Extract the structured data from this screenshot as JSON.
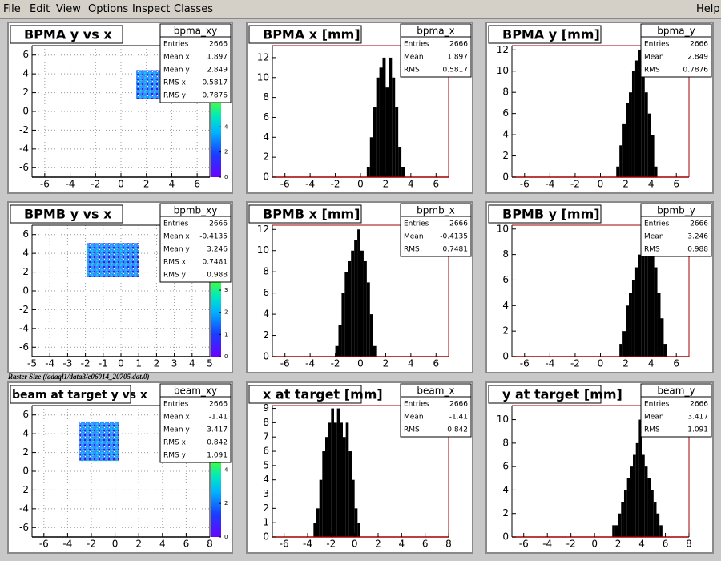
{
  "menu": [
    "File",
    "Edit",
    "View",
    "Options",
    "Inspect",
    "Classes"
  ],
  "help": "Help",
  "caption": "Raster Size (/adaql1/data3/e06014_20705.dat.0)",
  "chart_data": [
    {
      "type": "heatmap",
      "title": "BPMA y vs x",
      "stats": {
        "name": "bpma_xy",
        "rows": [
          {
            "label": "Entries",
            "value": 2666
          },
          {
            "label": "Mean x",
            "value": 1.897
          },
          {
            "label": "Mean y",
            "value": 2.849
          },
          {
            "label": "RMS x",
            "value": 0.5817
          },
          {
            "label": "RMS y",
            "value": 0.7876
          }
        ]
      },
      "cluster": {
        "x": [
          1.2,
          3.6
        ],
        "y": [
          1.3,
          4.4
        ]
      },
      "xlim": [
        -7,
        7
      ],
      "xticks": [
        -6,
        -4,
        -2,
        0,
        2,
        4,
        6
      ],
      "ylim": [
        -7,
        7
      ],
      "yticks": [
        -6,
        -4,
        -2,
        0,
        2,
        4,
        6
      ],
      "zlim": [
        0,
        6
      ],
      "zticks": [
        0,
        2,
        4
      ],
      "grid": true
    },
    {
      "type": "histogram",
      "title": "BPMA x [mm]",
      "stats": {
        "name": "bpma_x",
        "rows": [
          {
            "label": "Entries",
            "value": 2666
          },
          {
            "label": "Mean",
            "value": 1.897
          },
          {
            "label": "RMS",
            "value": 0.5817
          }
        ]
      },
      "bins": [
        0.5,
        0.75,
        1,
        1.25,
        1.5,
        1.75,
        2,
        2.25,
        2.5,
        2.75,
        3,
        3.25,
        3.5
      ],
      "values": [
        1,
        4,
        7,
        10,
        11,
        12,
        9,
        12,
        10,
        7,
        3,
        1
      ],
      "xlim": [
        -7,
        7
      ],
      "xticks": [
        -6,
        -4,
        -2,
        0,
        2,
        4,
        6
      ],
      "ylim": [
        0,
        13.2
      ],
      "yticks": [
        0,
        2,
        4,
        6,
        8,
        10,
        12
      ],
      "grid": false
    },
    {
      "type": "histogram",
      "title": "BPMA y [mm]",
      "stats": {
        "name": "bpma_y",
        "rows": [
          {
            "label": "Entries",
            "value": 2666
          },
          {
            "label": "Mean",
            "value": 2.849
          },
          {
            "label": "RMS",
            "value": 0.7876
          }
        ]
      },
      "bins": [
        1.25,
        1.5,
        1.75,
        2,
        2.25,
        2.5,
        2.75,
        3,
        3.25,
        3.5,
        3.75,
        4,
        4.25,
        4.5
      ],
      "values": [
        1,
        3,
        5,
        7,
        8,
        10,
        11,
        12,
        10,
        8,
        6,
        4,
        1
      ],
      "xlim": [
        -7,
        7
      ],
      "xticks": [
        -6,
        -4,
        -2,
        0,
        2,
        4,
        6
      ],
      "ylim": [
        0,
        12.4
      ],
      "yticks": [
        0,
        2,
        4,
        6,
        8,
        10,
        12
      ],
      "grid": false
    },
    {
      "type": "heatmap",
      "title": "BPMB y vs x",
      "stats": {
        "name": "bpmb_xy",
        "rows": [
          {
            "label": "Entries",
            "value": 2666
          },
          {
            "label": "Mean x",
            "value": -0.4135
          },
          {
            "label": "Mean y",
            "value": 3.246
          },
          {
            "label": "RMS x",
            "value": 0.7481
          },
          {
            "label": "RMS y",
            "value": 0.988
          }
        ]
      },
      "cluster": {
        "x": [
          -1.9,
          1.0
        ],
        "y": [
          1.45,
          5.1
        ]
      },
      "xlim": [
        -5,
        5
      ],
      "xticks": [
        -5,
        -4,
        -3,
        -2,
        -1,
        0,
        1,
        2,
        3,
        4,
        5
      ],
      "ylim": [
        -7,
        7
      ],
      "yticks": [
        -6,
        -4,
        -2,
        0,
        2,
        4,
        6
      ],
      "zlim": [
        0,
        3.4
      ],
      "zticks": [
        0,
        1,
        2,
        3
      ],
      "grid": true
    },
    {
      "type": "histogram",
      "title": "BPMB x [mm]",
      "stats": {
        "name": "bpmb_x",
        "rows": [
          {
            "label": "Entries",
            "value": 2666
          },
          {
            "label": "Mean",
            "value": -0.4135
          },
          {
            "label": "RMS",
            "value": 0.7481
          }
        ]
      },
      "bins": [
        -2,
        -1.75,
        -1.5,
        -1.25,
        -1,
        -0.75,
        -0.5,
        -0.25,
        0,
        0.25,
        0.5,
        0.75,
        1,
        1.25
      ],
      "values": [
        1,
        3,
        6,
        8,
        9,
        10,
        11,
        12,
        10,
        9,
        7,
        4,
        1
      ],
      "xlim": [
        -7,
        7
      ],
      "xticks": [
        -6,
        -4,
        -2,
        0,
        2,
        4,
        6
      ],
      "ylim": [
        0,
        12.4
      ],
      "yticks": [
        0,
        2,
        4,
        6,
        8,
        10,
        12
      ],
      "grid": false
    },
    {
      "type": "histogram",
      "title": "BPMB y [mm]",
      "stats": {
        "name": "bpmb_y",
        "rows": [
          {
            "label": "Entries",
            "value": 2666
          },
          {
            "label": "Mean",
            "value": 3.246
          },
          {
            "label": "RMS",
            "value": 0.988
          }
        ]
      },
      "bins": [
        1.5,
        1.75,
        2,
        2.25,
        2.5,
        2.75,
        3,
        3.25,
        3.5,
        3.75,
        4,
        4.25,
        4.5,
        4.75,
        5,
        5.25
      ],
      "values": [
        1,
        2,
        4,
        5,
        6,
        7,
        8,
        8,
        9,
        10,
        8,
        7,
        5,
        3,
        1
      ],
      "xlim": [
        -7,
        7
      ],
      "xticks": [
        -6,
        -4,
        -2,
        0,
        2,
        4,
        6
      ],
      "ylim": [
        0,
        10.3
      ],
      "yticks": [
        0,
        2,
        4,
        6,
        8,
        10
      ],
      "grid": false
    },
    {
      "type": "heatmap",
      "title": "beam at target y vs x",
      "stats": {
        "name": "beam_xy",
        "rows": [
          {
            "label": "Entries",
            "value": 2666
          },
          {
            "label": "Mean x",
            "value": -1.41
          },
          {
            "label": "Mean y",
            "value": 3.417
          },
          {
            "label": "RMS x",
            "value": 0.842
          },
          {
            "label": "RMS y",
            "value": 1.091
          }
        ]
      },
      "cluster": {
        "x": [
          -3,
          0.3
        ],
        "y": [
          1.1,
          5.3
        ]
      },
      "xlim": [
        -7,
        8
      ],
      "xticks": [
        -6,
        -4,
        -2,
        0,
        2,
        4,
        6,
        8
      ],
      "ylim": [
        -7,
        7
      ],
      "yticks": [
        -6,
        -4,
        -2,
        0,
        2,
        4,
        6
      ],
      "zlim": [
        0,
        4.5
      ],
      "zticks": [
        0,
        2,
        4
      ],
      "grid": true
    },
    {
      "type": "histogram",
      "title": "x at target [mm]",
      "stats": {
        "name": "beam_x",
        "rows": [
          {
            "label": "Entries",
            "value": 2666
          },
          {
            "label": "Mean",
            "value": -1.41
          },
          {
            "label": "RMS",
            "value": 0.842
          }
        ]
      },
      "bins": [
        -3.5,
        -3.25,
        -3,
        -2.75,
        -2.5,
        -2.25,
        -2,
        -1.75,
        -1.5,
        -1.25,
        -1,
        -0.75,
        -0.5,
        -0.25,
        0,
        0.25,
        0.5
      ],
      "values": [
        1,
        2,
        4,
        6,
        7,
        8,
        9,
        8,
        9,
        8,
        7,
        8,
        6,
        4,
        2,
        1
      ],
      "xlim": [
        -7,
        8
      ],
      "xticks": [
        -6,
        -4,
        -2,
        0,
        2,
        4,
        6,
        8
      ],
      "ylim": [
        0,
        9.2
      ],
      "yticks": [
        0,
        1,
        2,
        3,
        4,
        5,
        6,
        7,
        8,
        9
      ],
      "grid": false
    },
    {
      "type": "histogram",
      "title": "y at target [mm]",
      "stats": {
        "name": "beam_y",
        "rows": [
          {
            "label": "Entries",
            "value": 2666
          },
          {
            "label": "Mean",
            "value": 3.417
          },
          {
            "label": "RMS",
            "value": 1.091
          }
        ]
      },
      "bins": [
        1.5,
        1.75,
        2,
        2.25,
        2.5,
        2.75,
        3,
        3.25,
        3.5,
        3.75,
        4,
        4.25,
        4.5,
        4.75,
        5,
        5.25,
        5.5,
        5.75
      ],
      "values": [
        1,
        1,
        2,
        3,
        4,
        5,
        6,
        7,
        8,
        10,
        7,
        6,
        5,
        4,
        3,
        2,
        1
      ],
      "xlim": [
        -7,
        8
      ],
      "xticks": [
        -6,
        -4,
        -2,
        0,
        2,
        4,
        6,
        8
      ],
      "ylim": [
        0,
        11.2
      ],
      "yticks": [
        0,
        2,
        4,
        6,
        8,
        10
      ],
      "grid": false
    }
  ]
}
